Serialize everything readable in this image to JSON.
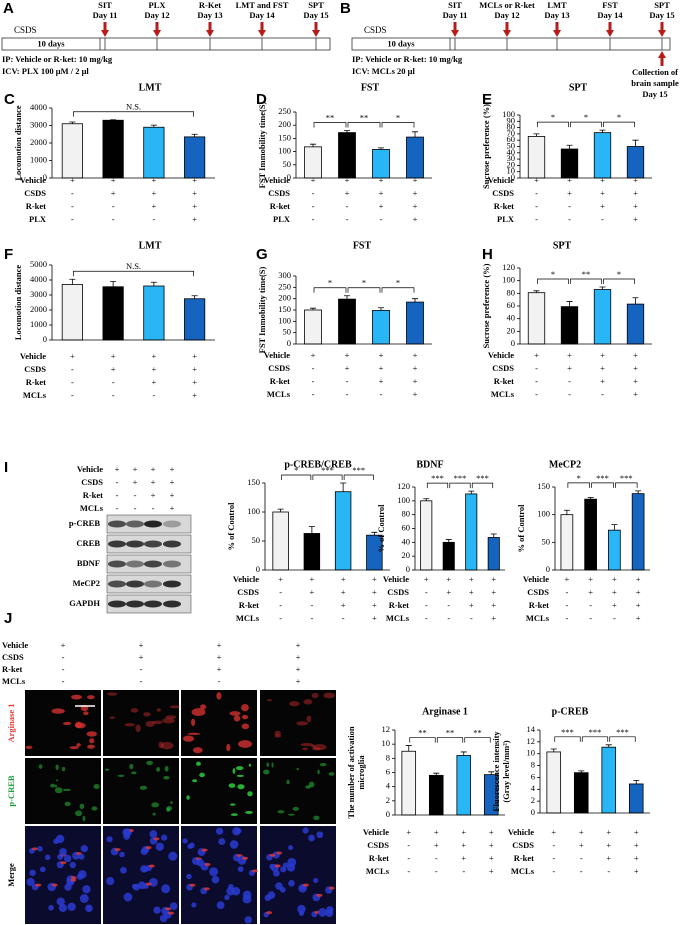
{
  "timelines": [
    {
      "label": "A",
      "phase": "CSDS",
      "duration": "10 days",
      "events": [
        {
          "name": "SIT",
          "day": "Day 11"
        },
        {
          "name": "PLX",
          "day": "Day 12"
        },
        {
          "name": "R-Ket",
          "day": "Day 13"
        },
        {
          "name": "LMT and FST",
          "day": "Day 14"
        },
        {
          "name": "SPT",
          "day": "Day 15"
        }
      ],
      "notes": [
        "IP: Vehicle or R-ket: 10 mg/kg",
        "ICV: PLX 100 μM / 2 μl"
      ]
    },
    {
      "label": "B",
      "phase": "CSDS",
      "duration": "10 days",
      "events": [
        {
          "name": "SIT",
          "day": "Day 11"
        },
        {
          "name": "MCLs or R-ket",
          "day": "Day 12"
        },
        {
          "name": "LMT",
          "day": "Day 13"
        },
        {
          "name": "FST",
          "day": "Day 14"
        },
        {
          "name": "SPT",
          "day": "Day 15"
        }
      ],
      "notes": [
        "IP: Vehicle or R-ket: 10 mg/kg",
        "ICV: MCLs 20 μl"
      ],
      "collection": [
        "Collection of",
        "brain sample",
        "Day 15"
      ]
    }
  ],
  "blot": {
    "label": "I",
    "bands": [
      "p-CREB",
      "CREB",
      "BDNF",
      "MeCP2",
      "GAPDH"
    ],
    "treatments": [
      {
        "name": "Vehicle",
        "signs": [
          "+",
          "+",
          "+",
          "+"
        ]
      },
      {
        "name": "CSDS",
        "signs": [
          "-",
          "+",
          "+",
          "+"
        ]
      },
      {
        "name": "R-ket",
        "signs": [
          "-",
          "-",
          "+",
          "+"
        ]
      },
      {
        "name": "MCLs",
        "signs": [
          "-",
          "-",
          "-",
          "+"
        ]
      }
    ]
  },
  "images": {
    "label": "J",
    "rows": [
      "Arginase 1",
      "p-CREB",
      "Merge"
    ],
    "treatments": [
      {
        "name": "Vehicle",
        "signs": [
          "+",
          "+",
          "+",
          "+"
        ]
      },
      {
        "name": "CSDS",
        "signs": [
          "-",
          "+",
          "+",
          "+"
        ]
      },
      {
        "name": "R-ket",
        "signs": [
          "-",
          "-",
          "+",
          "+"
        ]
      },
      {
        "name": "MCLs",
        "signs": [
          "-",
          "-",
          "-",
          "+"
        ]
      }
    ]
  },
  "chart_data": [
    {
      "type": "bar",
      "panel": "C",
      "title": "LMT",
      "ylabel": "Locomotion distance",
      "ylim": [
        0,
        4000
      ],
      "yticks": [
        0,
        1000,
        2000,
        3000,
        4000
      ],
      "values": [
        3100,
        3300,
        2900,
        2350
      ],
      "errors": [
        100,
        30,
        120,
        150
      ],
      "colors": [
        "#f2f2f2",
        "#000000",
        "#29b6f6",
        "#1565c0"
      ],
      "significance": [
        {
          "bars": [
            0,
            3
          ],
          "label": "N.S."
        }
      ],
      "treatments": [
        {
          "name": "Vehicle",
          "signs": [
            "+",
            "+",
            "+",
            "+"
          ]
        },
        {
          "name": "CSDS",
          "signs": [
            "-",
            "+",
            "+",
            "+"
          ]
        },
        {
          "name": "R-ket",
          "signs": [
            "-",
            "-",
            "+",
            "+"
          ]
        },
        {
          "name": "PLX",
          "signs": [
            "-",
            "-",
            "-",
            "+"
          ]
        }
      ]
    },
    {
      "type": "bar",
      "panel": "D",
      "title": "FST",
      "ylabel": "FST Immobility time(S)",
      "ylim": [
        0,
        250
      ],
      "yticks": [
        0,
        50,
        100,
        150,
        200,
        250
      ],
      "values": [
        118,
        172,
        108,
        155
      ],
      "errors": [
        10,
        8,
        6,
        20
      ],
      "colors": [
        "#f2f2f2",
        "#000000",
        "#29b6f6",
        "#1565c0"
      ],
      "significance": [
        {
          "bars": [
            0,
            1
          ],
          "label": "**"
        },
        {
          "bars": [
            1,
            2
          ],
          "label": "**"
        },
        {
          "bars": [
            2,
            3
          ],
          "label": "*"
        }
      ],
      "treatments": [
        {
          "name": "Vehicle",
          "signs": [
            "+",
            "+",
            "+",
            "+"
          ]
        },
        {
          "name": "CSDS",
          "signs": [
            "-",
            "+",
            "+",
            "+"
          ]
        },
        {
          "name": "R-ket",
          "signs": [
            "-",
            "-",
            "+",
            "+"
          ]
        },
        {
          "name": "PLX",
          "signs": [
            "-",
            "-",
            "-",
            "+"
          ]
        }
      ]
    },
    {
      "type": "bar",
      "panel": "E",
      "title": "SPT",
      "ylabel": "Sucrose preference (%)",
      "ylim": [
        0,
        100
      ],
      "yticks": [
        0,
        10,
        20,
        30,
        40,
        50,
        60,
        70,
        80,
        90,
        100
      ],
      "values": [
        66,
        46,
        72,
        50
      ],
      "errors": [
        4,
        6,
        4,
        10
      ],
      "colors": [
        "#f2f2f2",
        "#000000",
        "#29b6f6",
        "#1565c0"
      ],
      "significance": [
        {
          "bars": [
            0,
            1
          ],
          "label": "*"
        },
        {
          "bars": [
            1,
            2
          ],
          "label": "*"
        },
        {
          "bars": [
            2,
            3
          ],
          "label": "*"
        }
      ],
      "treatments": [
        {
          "name": "Vehicle",
          "signs": [
            "+",
            "+",
            "+",
            "+"
          ]
        },
        {
          "name": "CSDS",
          "signs": [
            "-",
            "+",
            "+",
            "+"
          ]
        },
        {
          "name": "R-ket",
          "signs": [
            "-",
            "-",
            "+",
            "+"
          ]
        },
        {
          "name": "PLX",
          "signs": [
            "-",
            "-",
            "-",
            "+"
          ]
        }
      ]
    },
    {
      "type": "bar",
      "panel": "F",
      "title": "LMT",
      "ylabel": "Locomotion distance",
      "ylim": [
        0,
        5000
      ],
      "yticks": [
        0,
        1000,
        2000,
        3000,
        4000,
        5000
      ],
      "values": [
        3700,
        3550,
        3600,
        2750
      ],
      "errors": [
        350,
        350,
        250,
        200
      ],
      "colors": [
        "#f2f2f2",
        "#000000",
        "#29b6f6",
        "#1565c0"
      ],
      "significance": [
        {
          "bars": [
            0,
            3
          ],
          "label": "N.S."
        }
      ],
      "treatments": [
        {
          "name": "Vehicle",
          "signs": [
            "+",
            "+",
            "+",
            "+"
          ]
        },
        {
          "name": "CSDS",
          "signs": [
            "-",
            "+",
            "+",
            "+"
          ]
        },
        {
          "name": "R-ket",
          "signs": [
            "-",
            "-",
            "+",
            "+"
          ]
        },
        {
          "name": "MCLs",
          "signs": [
            "-",
            "-",
            "-",
            "+"
          ]
        }
      ]
    },
    {
      "type": "bar",
      "panel": "G",
      "title": "FST",
      "ylabel": "FST Immobility time(S)",
      "ylim": [
        0,
        300
      ],
      "yticks": [
        0,
        50,
        100,
        150,
        200,
        250,
        300
      ],
      "values": [
        150,
        198,
        148,
        185
      ],
      "errors": [
        8,
        15,
        12,
        15
      ],
      "colors": [
        "#f2f2f2",
        "#000000",
        "#29b6f6",
        "#1565c0"
      ],
      "significance": [
        {
          "bars": [
            0,
            1
          ],
          "label": "*"
        },
        {
          "bars": [
            1,
            2
          ],
          "label": "*"
        },
        {
          "bars": [
            2,
            3
          ],
          "label": "*"
        }
      ],
      "treatments": [
        {
          "name": "Vehicle",
          "signs": [
            "+",
            "+",
            "+",
            "+"
          ]
        },
        {
          "name": "CSDS",
          "signs": [
            "-",
            "+",
            "+",
            "+"
          ]
        },
        {
          "name": "R-ket",
          "signs": [
            "-",
            "-",
            "+",
            "+"
          ]
        },
        {
          "name": "MCLs",
          "signs": [
            "-",
            "-",
            "-",
            "+"
          ]
        }
      ]
    },
    {
      "type": "bar",
      "panel": "H",
      "title": "SPT",
      "ylabel": "Sucrose preference (%)",
      "ylim": [
        0,
        120
      ],
      "yticks": [
        0,
        20,
        40,
        60,
        80,
        100,
        120
      ],
      "values": [
        81,
        59,
        86,
        63
      ],
      "errors": [
        3,
        8,
        4,
        10
      ],
      "colors": [
        "#f2f2f2",
        "#000000",
        "#29b6f6",
        "#1565c0"
      ],
      "significance": [
        {
          "bars": [
            0,
            1
          ],
          "label": "*"
        },
        {
          "bars": [
            1,
            2
          ],
          "label": "**"
        },
        {
          "bars": [
            2,
            3
          ],
          "label": "*"
        }
      ],
      "treatments": [
        {
          "name": "Vehicle",
          "signs": [
            "+",
            "+",
            "+",
            "+"
          ]
        },
        {
          "name": "CSDS",
          "signs": [
            "-",
            "+",
            "+",
            "+"
          ]
        },
        {
          "name": "R-ket",
          "signs": [
            "-",
            "-",
            "+",
            "+"
          ]
        },
        {
          "name": "MCLs",
          "signs": [
            "-",
            "-",
            "-",
            "+"
          ]
        }
      ]
    },
    {
      "type": "bar",
      "title": "p-CREB/CREB",
      "ylabel": "% of Control",
      "ylim": [
        0,
        150
      ],
      "yticks": [
        0,
        50,
        100,
        150
      ],
      "values": [
        100,
        63,
        135,
        60
      ],
      "errors": [
        5,
        12,
        15,
        5
      ],
      "colors": [
        "#f2f2f2",
        "#000000",
        "#29b6f6",
        "#1565c0"
      ],
      "significance": [
        {
          "bars": [
            0,
            1
          ],
          "label": "*"
        },
        {
          "bars": [
            1,
            2
          ],
          "label": "***"
        },
        {
          "bars": [
            2,
            3
          ],
          "label": "***"
        }
      ],
      "treatments": [
        {
          "name": "Vehicle",
          "signs": [
            "+",
            "+",
            "+",
            "+"
          ]
        },
        {
          "name": "CSDS",
          "signs": [
            "-",
            "+",
            "+",
            "+"
          ]
        },
        {
          "name": "R-ket",
          "signs": [
            "-",
            "-",
            "+",
            "+"
          ]
        },
        {
          "name": "MCLs",
          "signs": [
            "-",
            "-",
            "-",
            "+"
          ]
        }
      ]
    },
    {
      "type": "bar",
      "title": "BDNF",
      "ylabel": "% of Control",
      "ylim": [
        0,
        120
      ],
      "yticks": [
        0,
        20,
        40,
        60,
        80,
        100,
        120
      ],
      "values": [
        100,
        40,
        110,
        47
      ],
      "errors": [
        3,
        4,
        4,
        5
      ],
      "colors": [
        "#f2f2f2",
        "#000000",
        "#29b6f6",
        "#1565c0"
      ],
      "significance": [
        {
          "bars": [
            0,
            1
          ],
          "label": "***"
        },
        {
          "bars": [
            1,
            2
          ],
          "label": "***"
        },
        {
          "bars": [
            2,
            3
          ],
          "label": "***"
        }
      ],
      "treatments": [
        {
          "name": "Vehicle",
          "signs": [
            "+",
            "+",
            "+",
            "+"
          ]
        },
        {
          "name": "CSDS",
          "signs": [
            "-",
            "+",
            "+",
            "+"
          ]
        },
        {
          "name": "R-ket",
          "signs": [
            "-",
            "-",
            "+",
            "+"
          ]
        },
        {
          "name": "MCLs",
          "signs": [
            "-",
            "-",
            "-",
            "+"
          ]
        }
      ]
    },
    {
      "type": "bar",
      "title": "MeCP2",
      "ylabel": "% of Control",
      "ylim": [
        0,
        150
      ],
      "yticks": [
        0,
        50,
        100,
        150
      ],
      "values": [
        100,
        128,
        72,
        138
      ],
      "errors": [
        8,
        3,
        10,
        5
      ],
      "colors": [
        "#f2f2f2",
        "#000000",
        "#29b6f6",
        "#1565c0"
      ],
      "significance": [
        {
          "bars": [
            0,
            1
          ],
          "label": "*"
        },
        {
          "bars": [
            1,
            2
          ],
          "label": "***"
        },
        {
          "bars": [
            2,
            3
          ],
          "label": "***"
        }
      ],
      "treatments": [
        {
          "name": "Vehicle",
          "signs": [
            "+",
            "+",
            "+",
            "+"
          ]
        },
        {
          "name": "CSDS",
          "signs": [
            "-",
            "+",
            "+",
            "+"
          ]
        },
        {
          "name": "R-ket",
          "signs": [
            "-",
            "-",
            "+",
            "+"
          ]
        },
        {
          "name": "MCLs",
          "signs": [
            "-",
            "-",
            "-",
            "+"
          ]
        }
      ]
    },
    {
      "type": "bar",
      "title": "Arginase 1",
      "ylabel": [
        "The number of activation",
        "microglia"
      ],
      "ylim": [
        0,
        12
      ],
      "yticks": [
        0,
        2,
        4,
        6,
        8,
        10,
        12
      ],
      "values": [
        9,
        5.6,
        8.4,
        5.7
      ],
      "errors": [
        0.8,
        0.3,
        0.5,
        0.4
      ],
      "colors": [
        "#f2f2f2",
        "#000000",
        "#29b6f6",
        "#1565c0"
      ],
      "significance": [
        {
          "bars": [
            0,
            1
          ],
          "label": "**"
        },
        {
          "bars": [
            1,
            2
          ],
          "label": "**"
        },
        {
          "bars": [
            2,
            3
          ],
          "label": "**"
        }
      ],
      "treatments": [
        {
          "name": "Vehicle",
          "signs": [
            "+",
            "+",
            "+",
            "+"
          ]
        },
        {
          "name": "CSDS",
          "signs": [
            "-",
            "+",
            "+",
            "+"
          ]
        },
        {
          "name": "R-ket",
          "signs": [
            "-",
            "-",
            "+",
            "+"
          ]
        },
        {
          "name": "MCLs",
          "signs": [
            "-",
            "-",
            "-",
            "+"
          ]
        }
      ]
    },
    {
      "type": "bar",
      "title": "p-CREB",
      "ylabel": [
        "Fluorescence intensity",
        "(Gray level/mm²)"
      ],
      "ylim": [
        0,
        14
      ],
      "yticks": [
        0,
        2,
        4,
        6,
        8,
        10,
        12,
        14
      ],
      "values": [
        10.3,
        6.8,
        11.1,
        4.9
      ],
      "errors": [
        0.5,
        0.3,
        0.4,
        0.6
      ],
      "colors": [
        "#f2f2f2",
        "#000000",
        "#29b6f6",
        "#1565c0"
      ],
      "significance": [
        {
          "bars": [
            0,
            1
          ],
          "label": "***"
        },
        {
          "bars": [
            1,
            2
          ],
          "label": "***"
        },
        {
          "bars": [
            2,
            3
          ],
          "label": "***"
        }
      ],
      "treatments": [
        {
          "name": "Vehicle",
          "signs": [
            "+",
            "+",
            "+",
            "+"
          ]
        },
        {
          "name": "CSDS",
          "signs": [
            "-",
            "+",
            "+",
            "+"
          ]
        },
        {
          "name": "R-ket",
          "signs": [
            "-",
            "-",
            "+",
            "+"
          ]
        },
        {
          "name": "MCLs",
          "signs": [
            "-",
            "-",
            "-",
            "+"
          ]
        }
      ]
    }
  ]
}
